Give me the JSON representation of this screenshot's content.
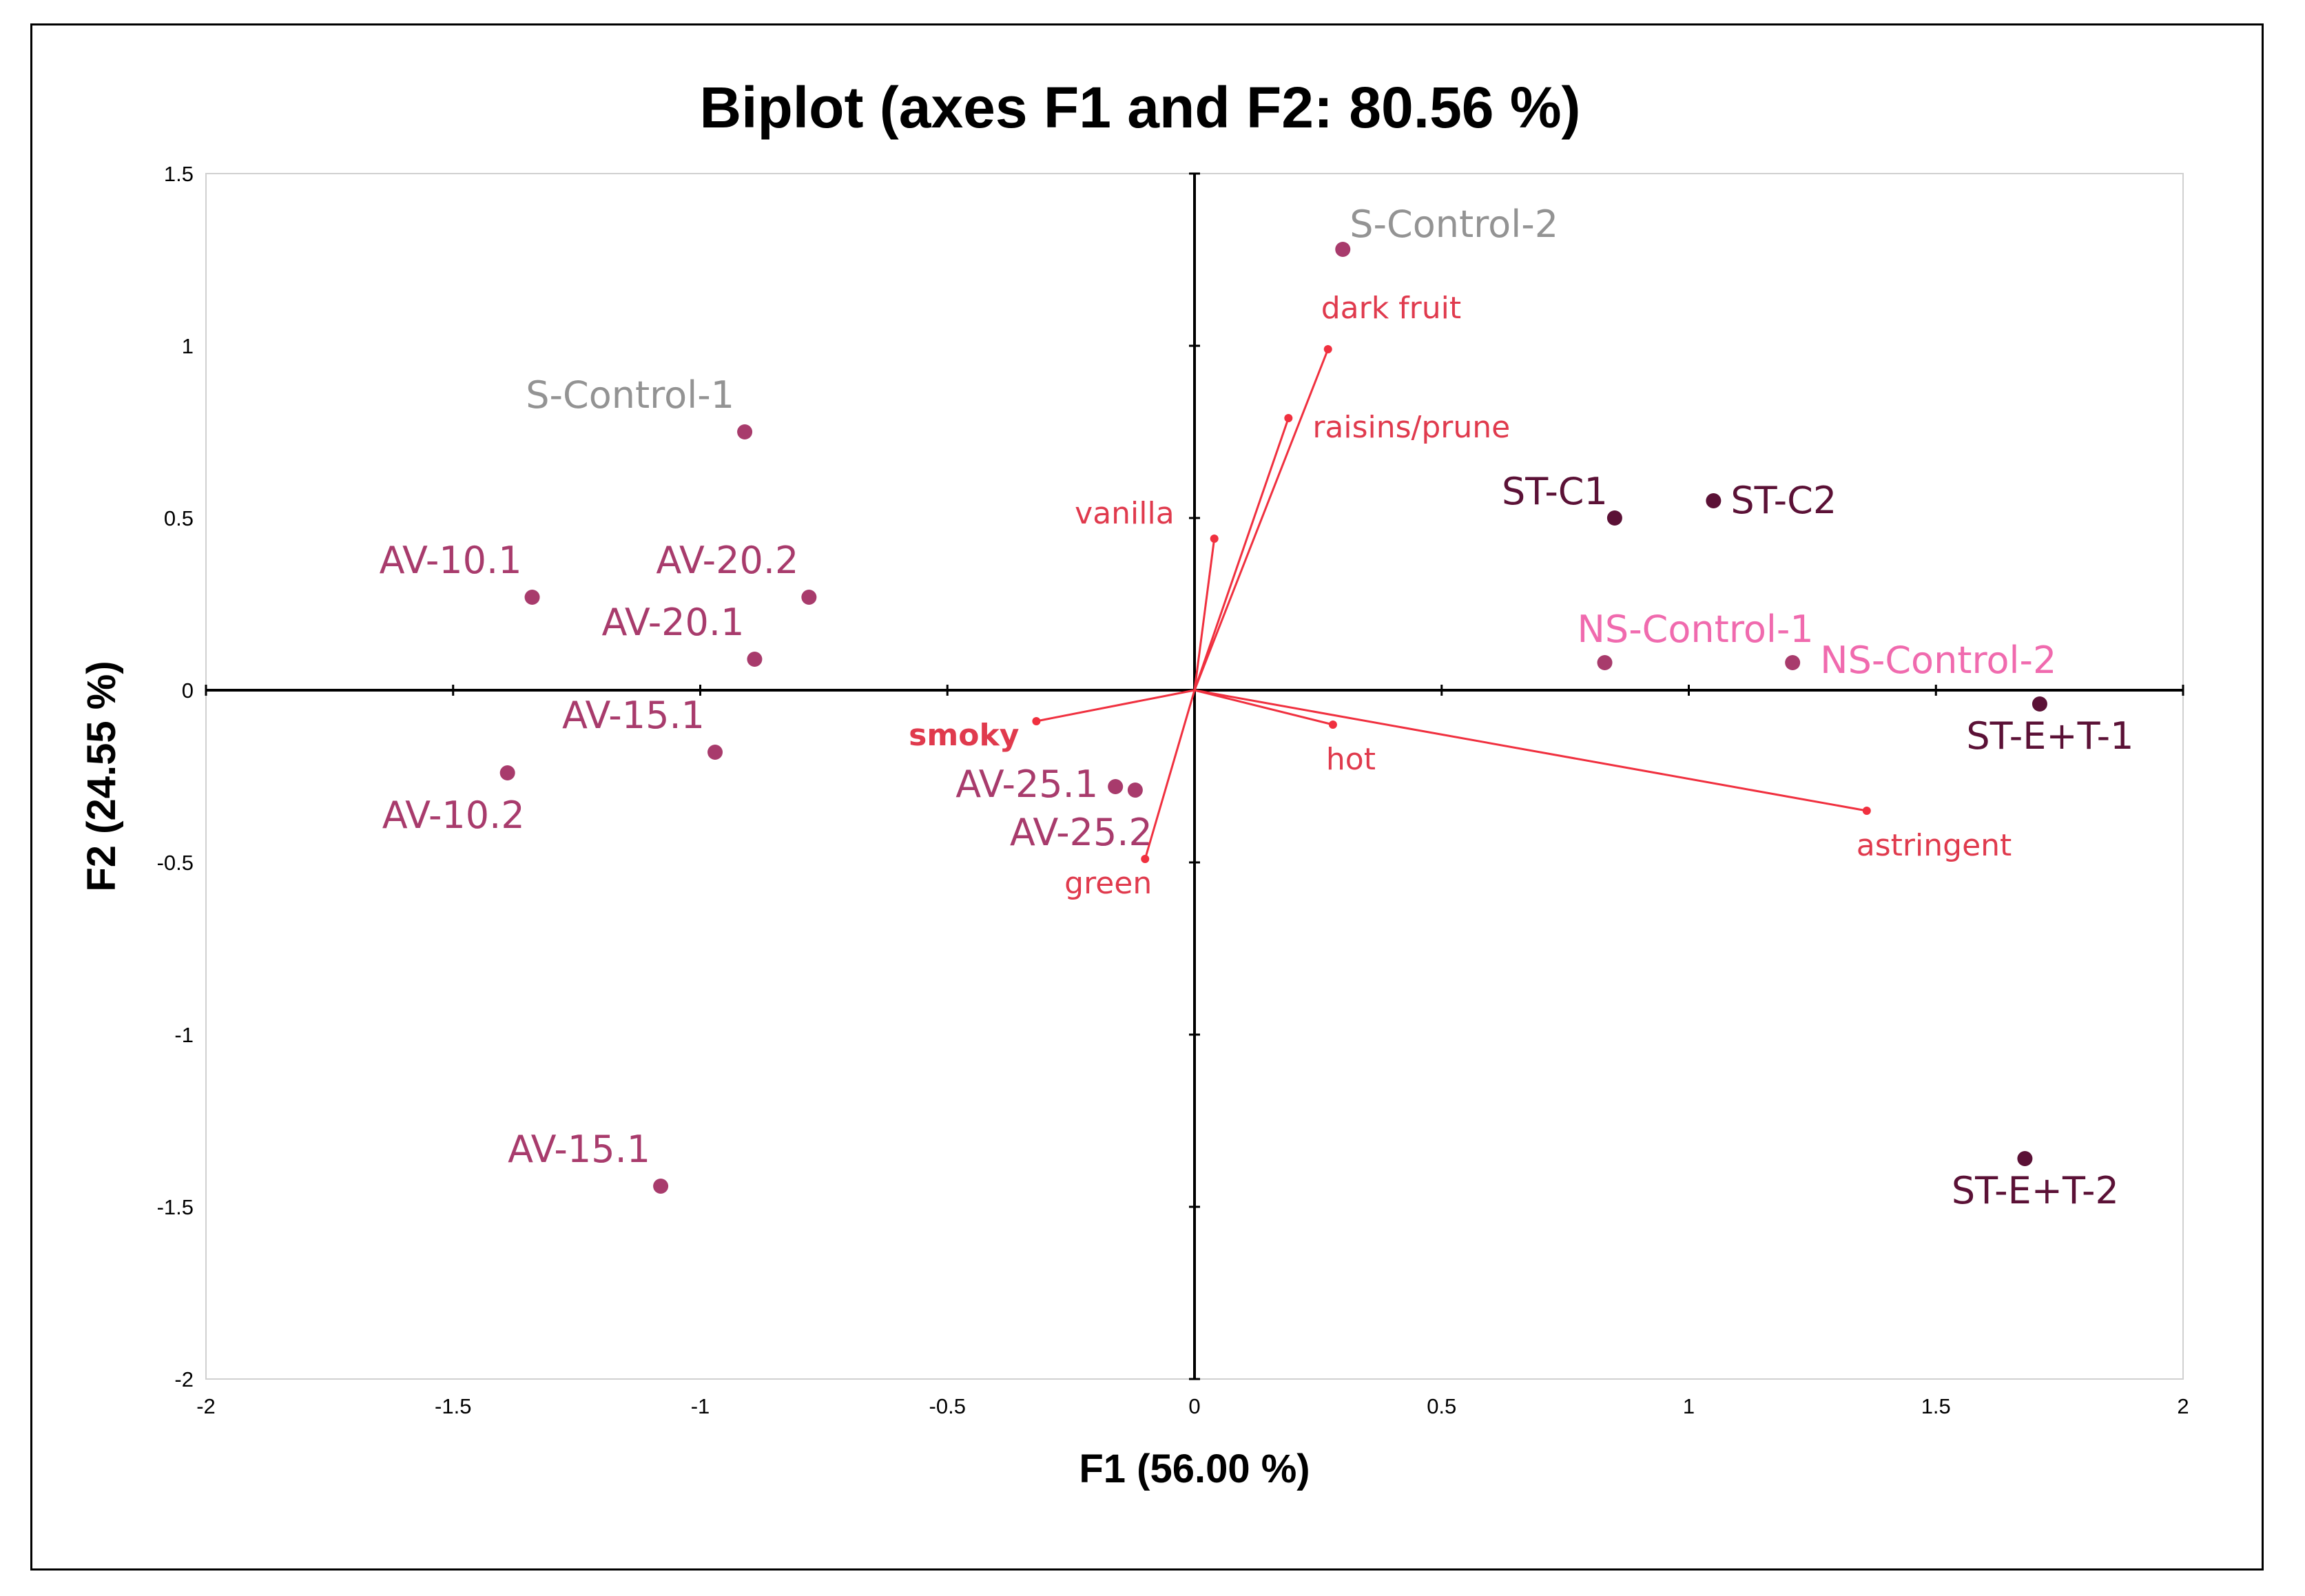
{
  "chart_data": {
    "type": "scatter",
    "title": "Biplot (axes F1 and F2: 80.56 %)",
    "xlabel": "F1 (56.00 %)",
    "ylabel": "F2 (24.55 %)",
    "xlim": [
      -2,
      2
    ],
    "ylim": [
      -2,
      1.5
    ],
    "x_ticks": [
      "-2",
      "-1.5",
      "-1",
      "-0.5",
      "0",
      "0.5",
      "1",
      "1.5",
      "2"
    ],
    "y_ticks": [
      "1.5",
      "1",
      "0.5",
      "0",
      "-0.5",
      "-1",
      "-1.5",
      "-2"
    ],
    "colors": {
      "observation": "#a83b6c",
      "observation_dark": "#5b1136",
      "control_grey": "#939393",
      "control_pink": "#f06aae",
      "variable": "#f0303f",
      "variable_text": "#e03a4d"
    },
    "observations": [
      {
        "label": "S-Control-2",
        "x": 0.3,
        "y": 1.28,
        "color": "control_grey",
        "anchor": "right"
      },
      {
        "label": "S-Control-1",
        "x": -0.91,
        "y": 0.75,
        "color": "control_grey",
        "anchor": "above-left"
      },
      {
        "label": "AV-10.1",
        "x": -1.34,
        "y": 0.27,
        "color": "observation",
        "anchor": "above-left"
      },
      {
        "label": "AV-20.2",
        "x": -0.78,
        "y": 0.27,
        "color": "observation",
        "anchor": "above-left"
      },
      {
        "label": "AV-20.1",
        "x": -0.89,
        "y": 0.09,
        "color": "observation",
        "anchor": "above-left"
      },
      {
        "label": "AV-15.1",
        "x": -0.97,
        "y": -0.18,
        "color": "observation",
        "anchor": "above-left"
      },
      {
        "label": "AV-10.2",
        "x": -1.39,
        "y": -0.24,
        "color": "observation",
        "anchor": "below-left"
      },
      {
        "label": "AV-25.1",
        "x": -0.16,
        "y": -0.28,
        "color": "observation",
        "anchor": "left"
      },
      {
        "label": "AV-25.2",
        "x": -0.12,
        "y": -0.29,
        "color": "observation",
        "anchor": "below-left"
      },
      {
        "label": "AV-15.1",
        "x": -1.08,
        "y": -1.44,
        "color": "observation",
        "anchor": "above-left"
      },
      {
        "label": "ST-C1",
        "x": 0.85,
        "y": 0.5,
        "color": "observation_dark",
        "anchor": "above-left"
      },
      {
        "label": "ST-C2",
        "x": 1.05,
        "y": 0.55,
        "color": "observation_dark",
        "anchor": "right"
      },
      {
        "label": "NS-Control-1",
        "x": 0.83,
        "y": 0.08,
        "color": "control_pink",
        "anchor": "above-right"
      },
      {
        "label": "NS-Control-2",
        "x": 1.21,
        "y": 0.08,
        "color": "control_pink",
        "anchor": "right"
      },
      {
        "label": "ST-E+T-1",
        "x": 1.71,
        "y": -0.04,
        "color": "observation_dark",
        "anchor": "below"
      },
      {
        "label": "ST-E+T-2",
        "x": 1.68,
        "y": -1.36,
        "color": "observation_dark",
        "anchor": "below"
      }
    ],
    "variables": [
      {
        "label": "dark fruit",
        "x": 0.27,
        "y": 0.99,
        "anchor": "above"
      },
      {
        "label": "raisins/prune",
        "x": 0.19,
        "y": 0.79,
        "anchor": "right"
      },
      {
        "label": "vanilla",
        "x": 0.04,
        "y": 0.44,
        "anchor": "left"
      },
      {
        "label": "smoky",
        "x": -0.32,
        "y": -0.09,
        "anchor": "left",
        "bold": true
      },
      {
        "label": "hot",
        "x": 0.28,
        "y": -0.1,
        "anchor": "below"
      },
      {
        "label": "astringent",
        "x": 1.36,
        "y": -0.35,
        "anchor": "below"
      },
      {
        "label": "green",
        "x": -0.1,
        "y": -0.49,
        "anchor": "below-left"
      }
    ]
  }
}
